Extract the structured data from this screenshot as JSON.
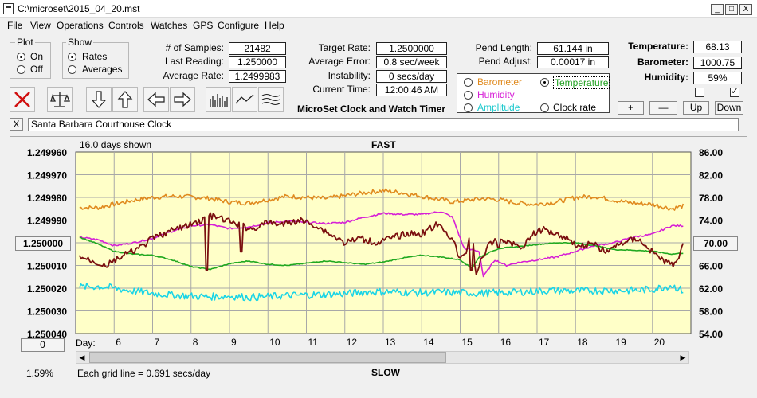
{
  "window": {
    "title": "C:\\microset\\2015_04_20.mst",
    "min_label": "_",
    "max_label": "□",
    "close_label": "X"
  },
  "menu": [
    "File",
    "View",
    "Operations",
    "Controls",
    "Watches",
    "GPS",
    "Configure",
    "Help"
  ],
  "plot_group": {
    "title": "Plot",
    "options": [
      "On",
      "Off"
    ],
    "selected": "On"
  },
  "show_group": {
    "title": "Show",
    "options": [
      "Rates",
      "Averages"
    ],
    "selected": "Rates"
  },
  "stats": {
    "samples_label": "# of Samples:",
    "samples": "21482",
    "last_reading_label": "Last Reading:",
    "last_reading": "1.250000",
    "avg_rate_label": "Average Rate:",
    "avg_rate": "1.2499983",
    "target_rate_label": "Target Rate:",
    "target_rate": "1.2500000",
    "avg_error_label": "Average Error:",
    "avg_error": "0.8 sec/week",
    "instability_label": "Instability:",
    "instability": "0 secs/day",
    "current_time_label": "Current Time:",
    "current_time": "12:00:46 AM",
    "pend_length_label": "Pend Length:",
    "pend_length": "61.144 in",
    "pend_adjust_label": "Pend Adjust:",
    "pend_adjust": "0.00017 in",
    "temperature_label": "Temperature:",
    "temperature": "68.13",
    "barometer_label": "Barometer:",
    "barometer": "1000.75",
    "humidity_label": "Humidity:",
    "humidity": "59%"
  },
  "app_caption": "MicroSet Clock and Watch Timer",
  "series_select": {
    "barometer": "Barometer",
    "temperature": "Temperature",
    "humidity": "Humidity",
    "amplitude": "Amplitude",
    "clock_rate": "Clock rate",
    "selected": "Temperature",
    "colors": {
      "barometer": "#e08a1e",
      "humidity": "#d61fd6",
      "amplitude": "#19c8cc"
    }
  },
  "scale_buttons": {
    "plus": "+",
    "minus": "—",
    "up": "Up",
    "down": "Down"
  },
  "checkbox_states": {
    "left": false,
    "right": true
  },
  "clock_name": "Santa Barbara Courthouse Clock",
  "clock_name_clear": "X",
  "plot": {
    "days_shown": "16.0 days shown",
    "top_label": "FAST",
    "bottom_label": "SLOW",
    "grid_note": "Each grid line = 0.691 secs/day",
    "percent": "1.59%",
    "left_button": "1.250000",
    "right_button": "70.00",
    "bottom_button": "0",
    "day_label": "Day:"
  },
  "chart_data": {
    "type": "line",
    "x_unit": "days",
    "xlim": [
      5,
      21
    ],
    "left_axis": {
      "ticks": [
        "1.249960",
        "1.249970",
        "1.249980",
        "1.249990",
        "1.250000",
        "1.250010",
        "1.250020",
        "1.250030",
        "1.250040"
      ],
      "ylim": [
        1.24996,
        1.25004
      ],
      "inverted": true
    },
    "right_axis": {
      "ticks": [
        "86.00",
        "82.00",
        "78.00",
        "74.00",
        "70.00",
        "66.00",
        "62.00",
        "58.00",
        "54.00"
      ],
      "ylim": [
        54,
        86
      ]
    },
    "x_ticks": [
      {
        "x": 6,
        "label": "6"
      },
      {
        "x": 7,
        "label": "7"
      },
      {
        "x": 8,
        "label": "8"
      },
      {
        "x": 9,
        "label": "9"
      },
      {
        "x": 10,
        "label": "10"
      },
      {
        "x": 11,
        "label": "11"
      },
      {
        "x": 12,
        "label": "12"
      },
      {
        "x": 13,
        "label": "13"
      },
      {
        "x": 14,
        "label": "14"
      },
      {
        "x": 15,
        "label": "15"
      },
      {
        "x": 16,
        "label": "16"
      },
      {
        "x": 17,
        "label": "17"
      },
      {
        "x": 18,
        "label": "18"
      },
      {
        "x": 19,
        "label": "19"
      },
      {
        "x": 20,
        "label": "20"
      }
    ],
    "series": [
      {
        "name": "Barometer",
        "color": "#e08a1e",
        "axis": "right",
        "noise": 0.4,
        "x": [
          5.1,
          5.6,
          6.0,
          6.5,
          7.0,
          7.5,
          8.0,
          8.5,
          9.0,
          9.5,
          10.0,
          10.5,
          11.0,
          11.5,
          12.0,
          12.5,
          13.0,
          13.5,
          14.0,
          14.5,
          14.8,
          15.2,
          15.6,
          16.0,
          16.5,
          17.0,
          17.5,
          18.0,
          18.5,
          19.0,
          19.5,
          20.0,
          20.5,
          20.8
        ],
        "y": [
          76.2,
          76.2,
          76.8,
          77.5,
          78.0,
          78.2,
          78.1,
          77.8,
          77.2,
          77.0,
          77.6,
          78.2,
          78.0,
          77.8,
          78.3,
          78.8,
          79.2,
          78.8,
          78.2,
          77.6,
          77.2,
          77.5,
          77.8,
          77.6,
          77.0,
          76.8,
          77.2,
          78.0,
          78.2,
          77.5,
          77.0,
          76.8,
          76.0,
          76.5
        ]
      },
      {
        "name": "Humidity",
        "color": "#d61fd6",
        "axis": "right",
        "noise": 0.15,
        "x": [
          5.1,
          5.6,
          6.0,
          6.5,
          7.0,
          7.5,
          8.0,
          8.5,
          9.0,
          9.5,
          10.0,
          10.5,
          11.0,
          11.5,
          12.0,
          12.5,
          13.0,
          13.5,
          14.0,
          14.5,
          14.8,
          15.1,
          15.5,
          15.6,
          15.9,
          16.2,
          16.5,
          17.0,
          17.5,
          18.0,
          18.5,
          19.0,
          19.5,
          20.0,
          20.5,
          20.8
        ],
        "y": [
          71.0,
          70.5,
          69.5,
          70.0,
          70.8,
          72.0,
          73.0,
          73.2,
          72.5,
          72.8,
          73.5,
          73.8,
          73.6,
          73.4,
          73.6,
          74.5,
          75.2,
          75.0,
          75.0,
          75.5,
          74.5,
          69.0,
          68.5,
          64.0,
          67.0,
          66.0,
          66.5,
          67.0,
          67.5,
          68.5,
          69.5,
          70.0,
          71.0,
          71.5,
          73.0,
          73.0
        ]
      },
      {
        "name": "Temperature",
        "color": "#20a820",
        "axis": "right",
        "noise": 0.08,
        "x": [
          5.1,
          5.5,
          6.0,
          6.5,
          7.0,
          7.5,
          8.0,
          8.5,
          9.0,
          9.5,
          10.0,
          10.5,
          11.0,
          11.5,
          12.0,
          12.5,
          13.0,
          13.5,
          14.0,
          14.5,
          15.0,
          15.3,
          15.5,
          16.0,
          16.5,
          17.0,
          17.5,
          18.0,
          18.5,
          19.0,
          19.5,
          20.0,
          20.5,
          20.8
        ],
        "y": [
          71.0,
          70.0,
          68.5,
          68.0,
          67.8,
          67.0,
          65.8,
          65.3,
          66.3,
          66.8,
          66.2,
          66.0,
          66.4,
          66.8,
          66.5,
          66.2,
          66.6,
          67.3,
          67.8,
          67.5,
          67.0,
          65.5,
          67.5,
          69.0,
          69.3,
          69.7,
          70.0,
          70.0,
          69.5,
          68.8,
          68.7,
          68.5,
          68.0,
          68.2
        ]
      },
      {
        "name": "Amplitude",
        "color": "#19d4e6",
        "axis": "right",
        "noise": 0.65,
        "x": [
          5.1,
          5.6,
          6.0,
          6.5,
          7.0,
          7.5,
          8.0,
          8.5,
          9.0,
          9.5,
          10.0,
          10.5,
          11.0,
          11.5,
          12.0,
          12.5,
          13.0,
          13.5,
          14.0,
          14.5,
          15.0,
          15.5,
          16.0,
          16.5,
          17.0,
          17.5,
          18.0,
          18.5,
          19.0,
          19.5,
          20.0,
          20.5,
          20.8
        ],
        "y": [
          62.2,
          62.3,
          62.0,
          61.5,
          61.1,
          60.8,
          60.6,
          60.5,
          60.6,
          60.4,
          60.5,
          60.7,
          60.8,
          60.9,
          61.0,
          61.3,
          61.4,
          61.3,
          61.2,
          61.3,
          61.2,
          61.1,
          61.2,
          61.3,
          61.5,
          61.6,
          61.5,
          61.6,
          61.6,
          61.6,
          61.8,
          62.5,
          61.5
        ]
      },
      {
        "name": "Clock rate",
        "color": "#7a0f0f",
        "axis": "left",
        "noise": 1.4e-06,
        "x": [
          5.1,
          5.4,
          5.8,
          6.2,
          6.7,
          7.0,
          7.3,
          7.6,
          8.0,
          8.3,
          8.5,
          8.9,
          9.2,
          9.6,
          10.0,
          10.4,
          10.8,
          11.2,
          11.6,
          12.0,
          12.4,
          12.8,
          13.2,
          13.6,
          14.0,
          14.4,
          14.8,
          15.0,
          15.2,
          15.3,
          15.4,
          15.5,
          15.7,
          16.0,
          16.3,
          16.6,
          16.9,
          17.2,
          17.5,
          17.8,
          18.1,
          18.4,
          18.8,
          19.2,
          19.6,
          20.0,
          20.3,
          20.6,
          20.8
        ],
        "y": [
          1.250006,
          1.250008,
          1.25001,
          1.250006,
          1.250002,
          1.249998,
          1.249996,
          1.249994,
          1.249992,
          1.24999,
          1.249988,
          1.24999,
          1.249992,
          1.249994,
          1.249991,
          1.249992,
          1.24999,
          1.249992,
          1.249996,
          1.25,
          1.249998,
          1.25,
          1.249998,
          1.249996,
          1.249996,
          1.249992,
          1.249998,
          1.250008,
          1.250002,
          1.24999,
          1.250014,
          1.25001,
          1.250002,
          1.249998,
          1.25,
          1.250002,
          1.249996,
          1.249994,
          1.249996,
          1.249998,
          1.250002,
          1.25,
          1.250004,
          1.25,
          1.249998,
          1.250004,
          1.250008,
          1.25001,
          1.25
        ],
        "spikes": [
          {
            "x": 8.4,
            "y": 1.250012
          },
          {
            "x": 9.3,
            "y": 1.250004
          },
          {
            "x": 15.3,
            "y": 1.250012
          },
          {
            "x": 16.0,
            "y": 1.250002
          }
        ]
      }
    ]
  }
}
